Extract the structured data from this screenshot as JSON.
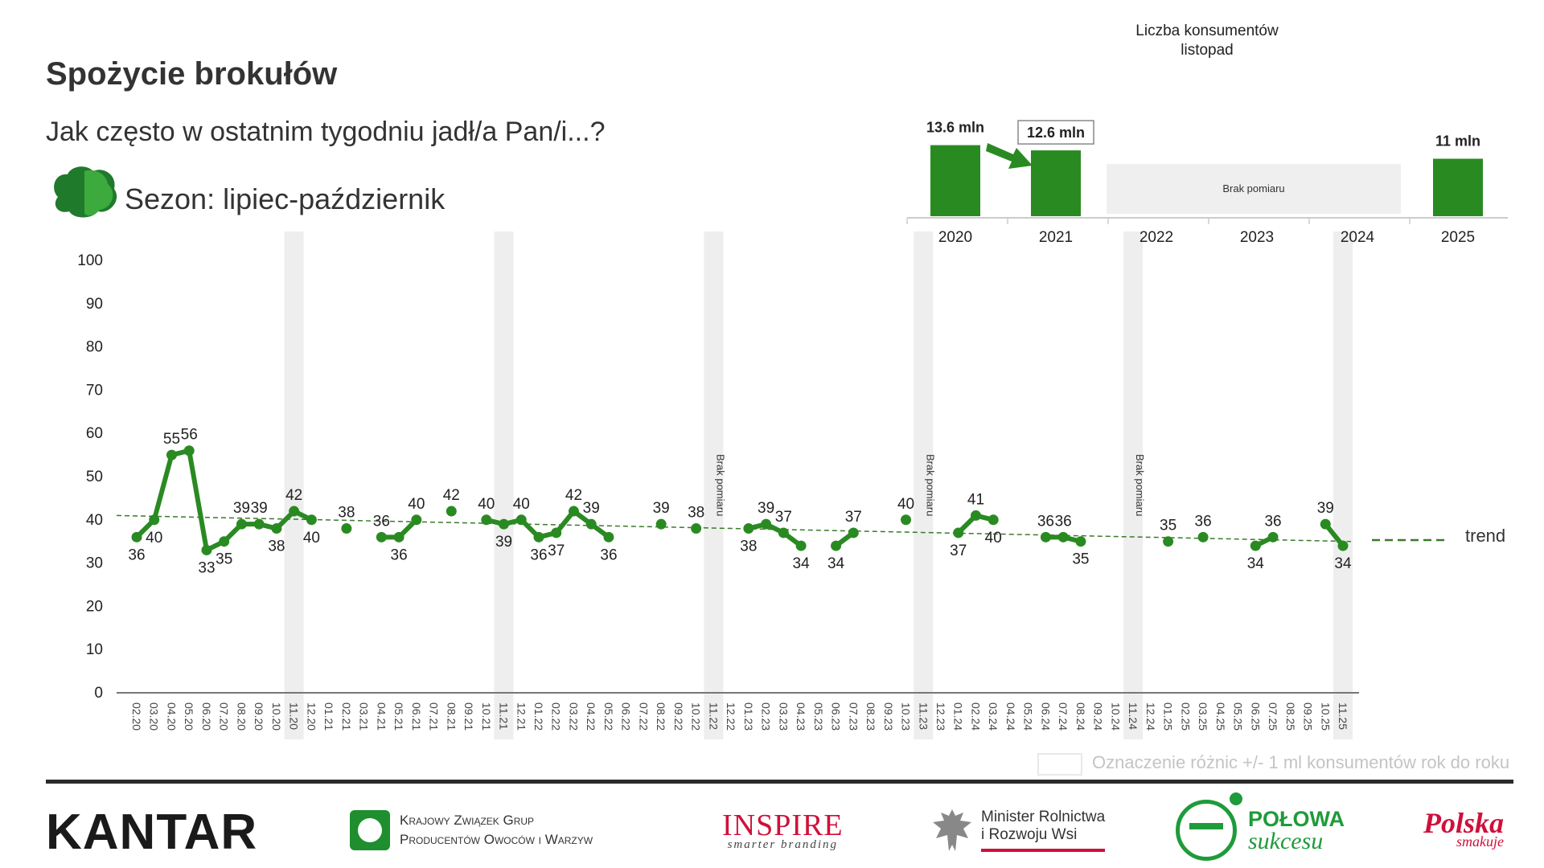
{
  "header": {
    "title": "Spożycie brokułów",
    "question": "Jak często w ostatnim tygodniu jadł/a Pan/i...?",
    "season": "Sezon: lipiec-październik"
  },
  "inset": {
    "title_line1": "Liczba konsumentów",
    "title_line2": "listopad",
    "years": [
      "2020",
      "2021",
      "2022",
      "2023",
      "2024",
      "2025"
    ],
    "values": [
      13.6,
      12.6,
      null,
      null,
      null,
      11
    ],
    "labels": [
      "13.6 mln",
      "12.6 mln",
      "",
      "",
      "",
      "11 mln"
    ],
    "no_measure_label": "Brak pomiaru",
    "bar_color": "#2a8a22"
  },
  "chart_data": {
    "type": "line",
    "ylim": [
      0,
      100
    ],
    "yticks": [
      0,
      10,
      20,
      30,
      40,
      50,
      60,
      70,
      80,
      90,
      100
    ],
    "categories": [
      "02.20",
      "03.20",
      "04.20",
      "05.20",
      "06.20",
      "07.20",
      "08.20",
      "09.20",
      "10.20",
      "11.20",
      "12.20",
      "01.21",
      "02.21",
      "03.21",
      "04.21",
      "05.21",
      "06.21",
      "07.21",
      "08.21",
      "09.21",
      "10.21",
      "11.21",
      "12.21",
      "01.22",
      "02.22",
      "03.22",
      "04.22",
      "05.22",
      "06.22",
      "07.22",
      "08.22",
      "09.22",
      "10.22",
      "11.22",
      "12.22",
      "01.23",
      "02.23",
      "03.23",
      "04.23",
      "05.23",
      "06.23",
      "07.23",
      "08.23",
      "09.23",
      "10.23",
      "11.23",
      "12.23",
      "01.24",
      "02.24",
      "03.24",
      "04.24",
      "05.24",
      "06.24",
      "07.24",
      "08.24",
      "09.24",
      "10.24",
      "11.24",
      "12.24",
      "01.25",
      "02.25",
      "03.25",
      "04.25",
      "05.25",
      "06.25",
      "07.25",
      "08.25",
      "09.25",
      "10.25",
      "11.25"
    ],
    "values": [
      36,
      40,
      55,
      56,
      33,
      35,
      39,
      39,
      38,
      42,
      40,
      null,
      38,
      null,
      36,
      36,
      40,
      null,
      42,
      null,
      40,
      39,
      40,
      36,
      37,
      42,
      39,
      36,
      null,
      null,
      39,
      null,
      38,
      null,
      null,
      38,
      39,
      37,
      34,
      null,
      34,
      37,
      null,
      null,
      40,
      null,
      null,
      37,
      41,
      40,
      null,
      null,
      36,
      36,
      35,
      null,
      null,
      null,
      null,
      35,
      null,
      36,
      null,
      null,
      34,
      36,
      null,
      null,
      39,
      34
    ],
    "highlight_categories": [
      "11.20",
      "11.21",
      "11.22",
      "11.23",
      "11.24",
      "11.25"
    ],
    "no_measure_categories": [
      "11.22",
      "11.23",
      "11.24"
    ],
    "no_measure_label": "Brak pomiaru",
    "trend": {
      "label": "trend",
      "start": 41,
      "end": 35
    },
    "line_color": "#2a8a22",
    "trend_color": "#3a7a2a"
  },
  "legend": {
    "text": "Oznaczenie różnic +/- 1 ml konsumentów rok do roku"
  },
  "footer": {
    "kantar": "KANTAR",
    "kzg_line1": "Krajowy Związek Grup",
    "kzg_line2": "Producentów Owoców i Warzyw",
    "inspire": "INSPIRE",
    "inspire_sub": "smarter branding",
    "minister_line1": "Minister Rolnictwa",
    "minister_line2": "i Rozwoju Wsi",
    "polowa_line1": "POŁOWA",
    "polowa_line2": "sukcesu",
    "polska_line1": "Polska",
    "polska_line2": "smakuje"
  }
}
